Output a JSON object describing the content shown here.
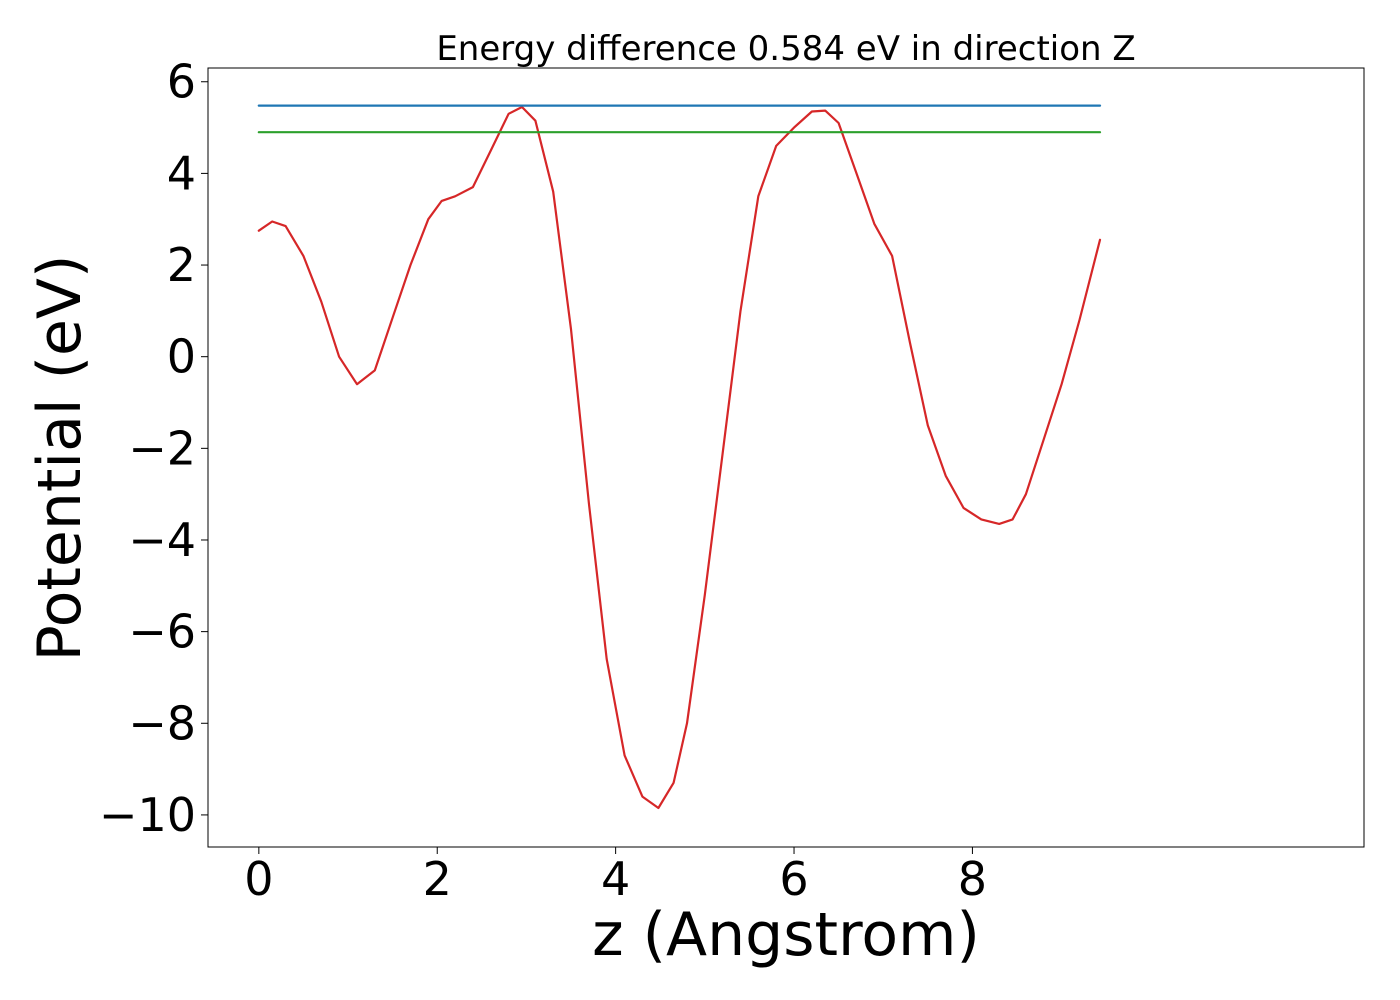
{
  "chart_data": {
    "type": "line",
    "title": "Energy difference 0.584 eV in direction Z",
    "xlabel": "z (Angstrom)",
    "ylabel": "Potential (eV)",
    "xlim": [
      -0.57,
      12.39
    ],
    "ylim": [
      -10.7,
      6.3
    ],
    "xticks": [
      0,
      2,
      4,
      6,
      8
    ],
    "xtick_labels": [
      "0",
      "2",
      "4",
      "6",
      "8"
    ],
    "yticks": [
      6,
      4,
      2,
      0,
      -2,
      -4,
      -6,
      -8,
      -10
    ],
    "ytick_labels": [
      "6",
      "4",
      "2",
      "0",
      "−2",
      "−4",
      "−6",
      "−8",
      "−10"
    ],
    "grid": false,
    "series": [
      {
        "color": "#d62728",
        "x": [
          0.0,
          0.15,
          0.3,
          0.5,
          0.7,
          0.9,
          1.1,
          1.3,
          1.5,
          1.7,
          1.9,
          2.05,
          2.2,
          2.4,
          2.6,
          2.8,
          2.95,
          3.1,
          3.3,
          3.5,
          3.7,
          3.9,
          4.1,
          4.3,
          4.48,
          4.65,
          4.8,
          5.0,
          5.2,
          5.4,
          5.6,
          5.8,
          6.0,
          6.2,
          6.35,
          6.5,
          6.7,
          6.9,
          7.1,
          7.3,
          7.5,
          7.7,
          7.9,
          8.1,
          8.3,
          8.45,
          8.6,
          8.8,
          9.0,
          9.2,
          9.43
        ],
        "y": [
          2.75,
          2.95,
          2.85,
          2.2,
          1.2,
          0.0,
          -0.6,
          -0.3,
          0.85,
          2.0,
          3.0,
          3.4,
          3.5,
          3.7,
          4.5,
          5.3,
          5.45,
          5.15,
          3.6,
          0.6,
          -3.2,
          -6.6,
          -8.7,
          -9.6,
          -9.85,
          -9.3,
          -8.0,
          -5.2,
          -2.1,
          1.0,
          3.5,
          4.6,
          5.0,
          5.35,
          5.37,
          5.1,
          4.0,
          2.9,
          2.2,
          0.3,
          -1.5,
          -2.6,
          -3.3,
          -3.55,
          -3.65,
          -3.55,
          -3.0,
          -1.8,
          -0.6,
          0.8,
          2.55
        ]
      },
      {
        "color": "#1f77b4",
        "x": [
          0.0,
          9.43
        ],
        "y": [
          5.48,
          5.48
        ]
      },
      {
        "color": "#2ca02c",
        "x": [
          0.0,
          9.43
        ],
        "y": [
          4.9,
          4.9
        ]
      }
    ]
  }
}
